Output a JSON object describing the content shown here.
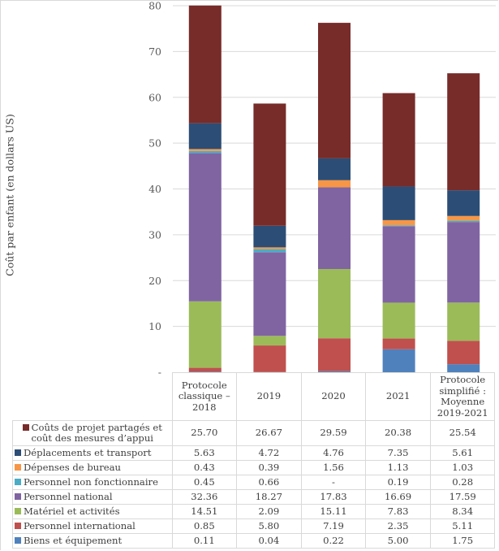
{
  "chart_data": {
    "type": "bar",
    "stacked": true,
    "title": "",
    "xlabel": "",
    "ylabel": "Coût par enfant (en dollars US)",
    "ylim": [
      0,
      80
    ],
    "yticks": [
      0,
      10,
      20,
      30,
      40,
      50,
      60,
      70,
      80
    ],
    "ytick_labels": [
      "-",
      "10",
      "20",
      "30",
      "40",
      "50",
      "60",
      "70",
      "80"
    ],
    "grid": true,
    "legend": "data-table-below",
    "categories": [
      "Protocole classique – 2018",
      "2019",
      "2020",
      "2021",
      "Protocole simplifié : Moyenne 2019-2021"
    ],
    "series": [
      {
        "name": "Biens et équipement",
        "color": "#4f81bd",
        "values": [
          0.11,
          0.04,
          0.22,
          5.0,
          1.75
        ],
        "labels": [
          "0.11",
          "0.04",
          "0.22",
          "5.00",
          "1.75"
        ]
      },
      {
        "name": "Personnel international",
        "color": "#c0504d",
        "values": [
          0.85,
          5.8,
          7.19,
          2.35,
          5.11
        ],
        "labels": [
          "0.85",
          "5.80",
          "7.19",
          "2.35",
          "5.11"
        ]
      },
      {
        "name": "Matériel et activités",
        "color": "#9bbb59",
        "values": [
          14.51,
          2.09,
          15.11,
          7.83,
          8.34
        ],
        "labels": [
          "14.51",
          "2.09",
          "15.11",
          "7.83",
          "8.34"
        ]
      },
      {
        "name": "Personnel national",
        "color": "#8064a2",
        "values": [
          32.36,
          18.27,
          17.83,
          16.69,
          17.59
        ],
        "labels": [
          "32.36",
          "18.27",
          "17.83",
          "16.69",
          "17.59"
        ]
      },
      {
        "name": "Personnel non fonctionnaire",
        "color": "#4bacc6",
        "values": [
          0.45,
          0.66,
          0,
          0.19,
          0.28
        ],
        "labels": [
          "0.45",
          "0.66",
          "-",
          "0.19",
          "0.28"
        ]
      },
      {
        "name": "Dépenses de bureau",
        "color": "#f79646",
        "values": [
          0.43,
          0.39,
          1.56,
          1.13,
          1.03
        ],
        "labels": [
          "0.43",
          "0.39",
          "1.56",
          "1.13",
          "1.03"
        ]
      },
      {
        "name": "Déplacements et transport",
        "color": "#2c4d75",
        "values": [
          5.63,
          4.72,
          4.76,
          7.35,
          5.61
        ],
        "labels": [
          "5.63",
          "4.72",
          "4.76",
          "7.35",
          "5.61"
        ]
      },
      {
        "name": "Coûts de projet partagés et coût des mesures d’appui",
        "color": "#772c2a",
        "values": [
          25.7,
          26.67,
          29.59,
          20.38,
          25.54
        ],
        "labels": [
          "25.70",
          "26.67",
          "29.59",
          "20.38",
          "25.54"
        ]
      }
    ],
    "table_row_order": [
      "Coûts de projet partagés et coût des mesures d’appui",
      "Déplacements et transport",
      "Dépenses de bureau",
      "Personnel non fonctionnaire",
      "Personnel national",
      "Matériel et activités",
      "Personnel international",
      "Biens et équipement"
    ]
  }
}
